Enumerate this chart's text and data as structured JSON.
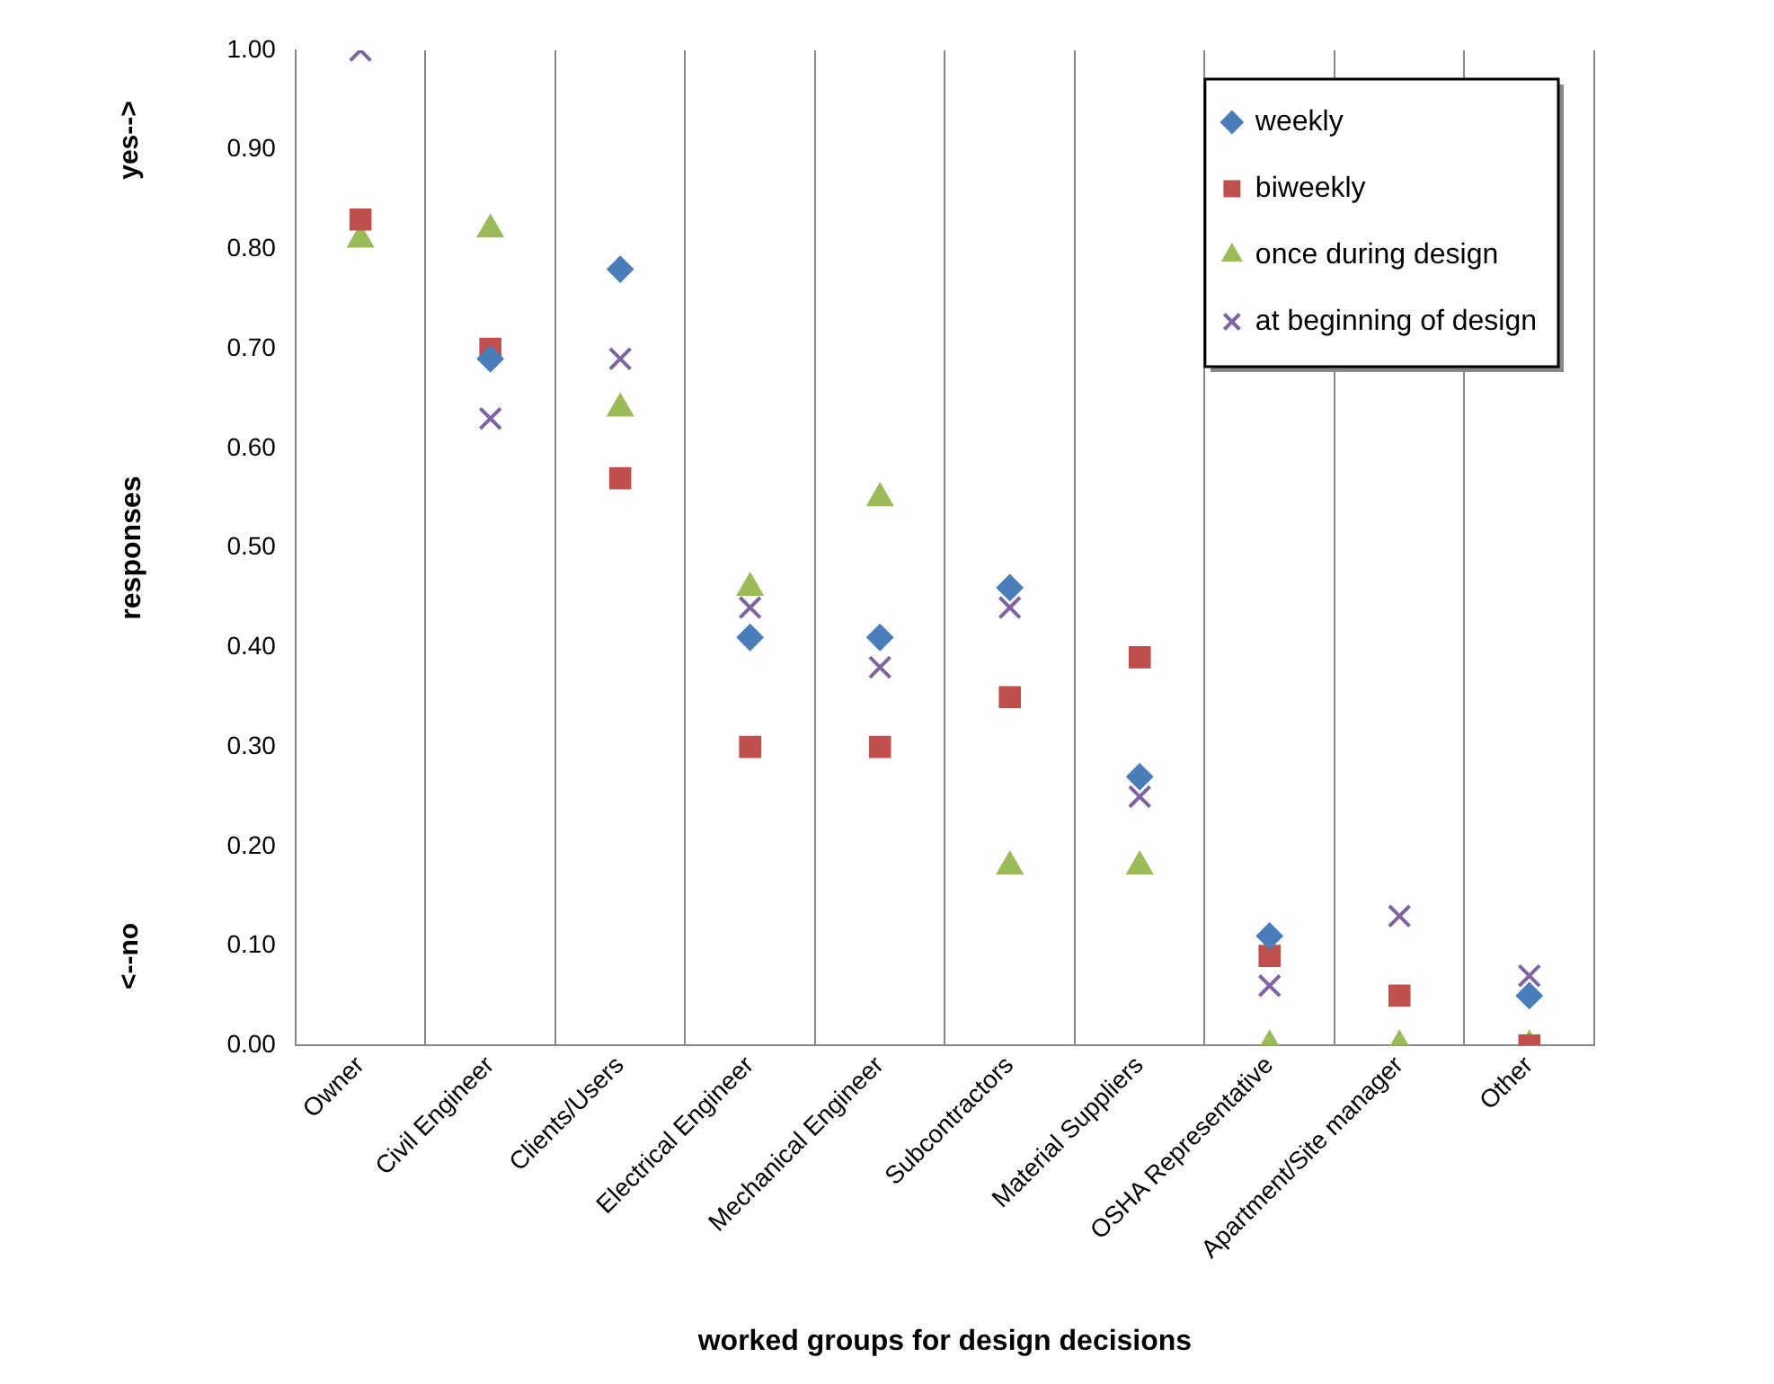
{
  "chart_data": {
    "type": "scatter",
    "xlabel": "worked groups for design decisions",
    "ylabel": "responses",
    "annotations": [
      "yes-->",
      "<--no"
    ],
    "categories": [
      "Owner",
      "Civil Engineer",
      "Clients/Users",
      "Electrical Engineer",
      "Mechanical Engineer",
      "Subcontractors",
      "Material Suppliers",
      "OSHA Representative",
      "Apartment/Site manager",
      "Other"
    ],
    "series": [
      {
        "name": "weekly",
        "color": "#4a7ebb",
        "marker": "diamond",
        "values": [
          null,
          0.69,
          0.78,
          0.41,
          0.41,
          0.46,
          0.27,
          0.11,
          null,
          0.05
        ]
      },
      {
        "name": "biweekly",
        "color": "#c0504d",
        "marker": "square",
        "values": [
          0.83,
          0.7,
          0.57,
          0.3,
          0.3,
          0.35,
          0.39,
          0.09,
          0.05,
          0.0
        ]
      },
      {
        "name": "once during design",
        "color": "#9bbb59",
        "marker": "triangle",
        "values": [
          0.81,
          0.82,
          0.64,
          0.46,
          0.55,
          0.18,
          0.18,
          0.0,
          0.0,
          0.0
        ]
      },
      {
        "name": "at beginning of design",
        "color": "#8064a2",
        "marker": "cross",
        "values": [
          1.0,
          0.63,
          0.69,
          0.44,
          0.38,
          0.44,
          0.25,
          0.06,
          0.13,
          0.07
        ]
      }
    ],
    "ylim": [
      0,
      1
    ],
    "yticks": [
      {
        "value": 0,
        "label": "0.00"
      },
      {
        "value": 0.1,
        "label": "0.10"
      },
      {
        "value": 0.2,
        "label": "0.20"
      },
      {
        "value": 0.3,
        "label": "0.30"
      },
      {
        "value": 0.4,
        "label": "0.40"
      },
      {
        "value": 0.5,
        "label": "0.50"
      },
      {
        "value": 0.6,
        "label": "0.60"
      },
      {
        "value": 0.7,
        "label": "0.70"
      },
      {
        "value": 0.8,
        "label": "0.80"
      },
      {
        "value": 0.9,
        "label": "0.90"
      },
      {
        "value": 1,
        "label": "1.00"
      }
    ],
    "grid": "x",
    "legend": "top right"
  }
}
